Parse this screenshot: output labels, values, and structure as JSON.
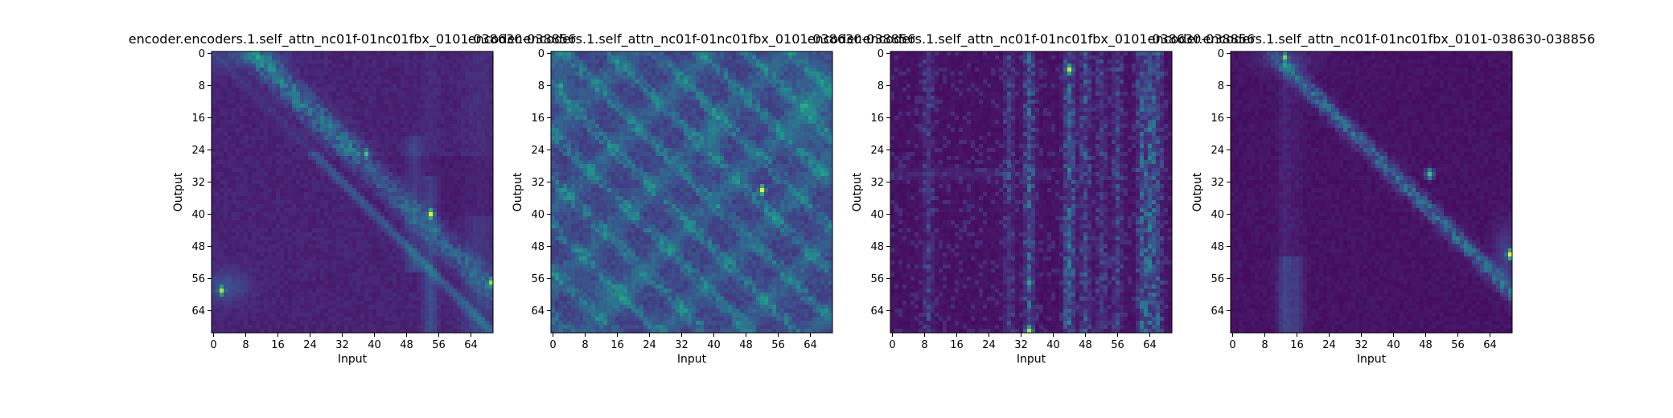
{
  "chart_data": [
    {
      "type": "heatmap",
      "title": "encoder.encoders.1.self_attn_nc01f-01nc01fbx_0101-038630-038856",
      "xlabel": "Input",
      "ylabel": "Output",
      "rows": 70,
      "cols": 70,
      "xlim": [
        0,
        69
      ],
      "ylim": [
        0,
        69
      ],
      "xticks": [
        "0",
        "8",
        "16",
        "24",
        "32",
        "40",
        "48",
        "56",
        "64"
      ],
      "yticks": [
        "0",
        "8",
        "16",
        "24",
        "32",
        "40",
        "48",
        "56",
        "64"
      ],
      "colormap": "viridis",
      "pattern": "diagonal banded attention; strong cell near (input 54, output 40); bright cells near (input 2, output 59)",
      "peaks": [
        {
          "x": 54,
          "y": 40,
          "v": 1.0
        },
        {
          "x": 2,
          "y": 59,
          "v": 0.9
        },
        {
          "x": 69,
          "y": 57,
          "v": 0.85
        },
        {
          "x": 38,
          "y": 25,
          "v": 0.7
        }
      ]
    },
    {
      "type": "heatmap",
      "title": "encoder.encoders.1.self_attn_nc01f-01nc01fbx_0101-038630-038856",
      "xlabel": "Input",
      "ylabel": "Output",
      "rows": 70,
      "cols": 70,
      "xlim": [
        0,
        69
      ],
      "ylim": [
        0,
        69
      ],
      "xticks": [
        "0",
        "8",
        "16",
        "24",
        "32",
        "40",
        "48",
        "56",
        "64"
      ],
      "yticks": [
        "0",
        "8",
        "16",
        "24",
        "32",
        "40",
        "48",
        "56",
        "64"
      ],
      "colormap": "viridis",
      "pattern": "diffuse attention with many diagonal stripes; strongest cell near (input 52, output 34)",
      "peaks": [
        {
          "x": 52,
          "y": 34,
          "v": 1.0
        },
        {
          "x": 2,
          "y": 8,
          "v": 0.6
        }
      ]
    },
    {
      "type": "heatmap",
      "title": "encoder.encoders.1.self_attn_nc01f-01nc01fbx_0101-038630-038856",
      "xlabel": "Input",
      "ylabel": "Output",
      "rows": 70,
      "cols": 70,
      "xlim": [
        0,
        69
      ],
      "ylim": [
        0,
        69
      ],
      "xticks": [
        "0",
        "8",
        "16",
        "24",
        "32",
        "40",
        "48",
        "56",
        "64"
      ],
      "yticks": [
        "0",
        "8",
        "16",
        "24",
        "32",
        "40",
        "48",
        "56",
        "64"
      ],
      "colormap": "viridis",
      "pattern": "vertical column attention at inputs ~34, ~44, ~48, ~64; bright cell near (input 44, output 4)",
      "peaks": [
        {
          "x": 44,
          "y": 4,
          "v": 0.95
        },
        {
          "x": 34,
          "y": 69,
          "v": 0.9
        },
        {
          "x": 34,
          "y": 57,
          "v": 0.6
        }
      ]
    },
    {
      "type": "heatmap",
      "title": "encoder.encoders.1.self_attn_nc01f-01nc01fbx_0101-038630-038856",
      "xlabel": "Input",
      "ylabel": "Output",
      "rows": 70,
      "cols": 70,
      "xlim": [
        0,
        69
      ],
      "ylim": [
        0,
        69
      ],
      "xticks": [
        "0",
        "8",
        "16",
        "24",
        "32",
        "40",
        "48",
        "56",
        "64"
      ],
      "yticks": [
        "0",
        "8",
        "16",
        "24",
        "32",
        "40",
        "48",
        "56",
        "64"
      ],
      "colormap": "viridis",
      "pattern": "sharp diagonal band from top-left toward bottom-right; strong cell near (input 69, output 50); column near input 13",
      "peaks": [
        {
          "x": 69,
          "y": 50,
          "v": 1.0
        },
        {
          "x": 13,
          "y": 1,
          "v": 0.8
        },
        {
          "x": 49,
          "y": 30,
          "v": 0.7
        }
      ]
    }
  ]
}
